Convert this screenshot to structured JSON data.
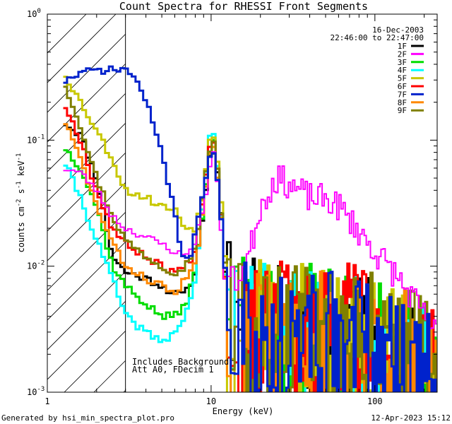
{
  "chart_data": {
    "type": "line",
    "title": "Count Spectra for RHESSI Front Segments",
    "xlabel": "Energy (keV)",
    "ylabel": "counts cm^-2 s^-1 keV^-1",
    "ylabel_parts": {
      "main": "counts cm",
      "sup1": "-2",
      "mid": " s",
      "sup2": "-1",
      "unit": " keV",
      "sup3": "-1"
    },
    "x_scale": "log",
    "y_scale": "log",
    "xlim": [
      1,
      240
    ],
    "ylim": [
      0.001,
      1
    ],
    "x_tick_labels": [
      "1",
      "10",
      "100"
    ],
    "x_tick_values": [
      1,
      10,
      100
    ],
    "y_tick_labels": [
      {
        "base": "10",
        "exp": "0",
        "value": 1
      },
      {
        "base": "10",
        "exp": "-1",
        "value": 0.1
      },
      {
        "base": "10",
        "exp": "-2",
        "value": 0.01
      },
      {
        "base": "10",
        "exp": "-3",
        "value": 0.001
      }
    ],
    "date": "16-Dec-2003",
    "time_range": "22:46:00 to 22:47:00",
    "background_note": "Includes Background",
    "attenuator_note": "Att A0, FDecim 1",
    "shaded_region_keV": [
      1,
      3
    ],
    "footer_left": "Generated by hsi_min_spectra_plot.pro",
    "footer_right": "12-Apr-2023 15:12",
    "series": [
      {
        "name": "1F",
        "color": "#000000",
        "seed": 11,
        "lo": [
          [
            1.25,
            0.14
          ],
          [
            1.6,
            0.11
          ],
          [
            2.0,
            0.05
          ],
          [
            2.5,
            0.012
          ],
          [
            3.0,
            0.009
          ],
          [
            4,
            0.008
          ],
          [
            5,
            0.007
          ],
          [
            6,
            0.006
          ],
          [
            7,
            0.006
          ],
          [
            8,
            0.009
          ],
          [
            9,
            0.03
          ],
          [
            10,
            0.085
          ],
          [
            10.6,
            0.08
          ],
          [
            11.3,
            0.04
          ],
          [
            12,
            0.01
          ],
          [
            13,
            0.0045
          ],
          [
            20,
            0.003
          ],
          [
            40,
            0.003
          ],
          [
            80,
            0.0025
          ],
          [
            150,
            0.0018
          ],
          [
            230,
            0.0013
          ]
        ]
      },
      {
        "name": "2F",
        "color": "#ff00ff",
        "seed": 23,
        "lo": [
          [
            1.25,
            0.06
          ],
          [
            1.6,
            0.055
          ],
          [
            2.0,
            0.04
          ],
          [
            2.5,
            0.025
          ],
          [
            3.0,
            0.02
          ],
          [
            4,
            0.017
          ],
          [
            5,
            0.015
          ],
          [
            6,
            0.013
          ],
          [
            7,
            0.012
          ],
          [
            8,
            0.016
          ],
          [
            9,
            0.03
          ],
          [
            10,
            0.07
          ],
          [
            10.6,
            0.08
          ],
          [
            11.3,
            0.03
          ],
          [
            12,
            0.008
          ],
          [
            14,
            0.0075
          ],
          [
            17,
            0.012
          ],
          [
            20,
            0.03
          ],
          [
            25,
            0.05
          ],
          [
            30,
            0.045
          ],
          [
            40,
            0.035
          ],
          [
            50,
            0.034
          ],
          [
            60,
            0.03
          ],
          [
            80,
            0.019
          ],
          [
            100,
            0.013
          ],
          [
            130,
            0.009
          ],
          [
            180,
            0.005
          ],
          [
            230,
            0.003
          ]
        ]
      },
      {
        "name": "3F",
        "color": "#00dd00",
        "seed": 37,
        "lo": [
          [
            1.25,
            0.09
          ],
          [
            1.6,
            0.06
          ],
          [
            2.0,
            0.03
          ],
          [
            2.5,
            0.01
          ],
          [
            3.0,
            0.007
          ],
          [
            4,
            0.005
          ],
          [
            5,
            0.004
          ],
          [
            6,
            0.004
          ],
          [
            7,
            0.005
          ],
          [
            8,
            0.009
          ],
          [
            9,
            0.03
          ],
          [
            10,
            0.1
          ],
          [
            10.6,
            0.09
          ],
          [
            11.3,
            0.04
          ],
          [
            12,
            0.012
          ],
          [
            13,
            0.004
          ],
          [
            20,
            0.003
          ],
          [
            40,
            0.003
          ],
          [
            80,
            0.0026
          ],
          [
            150,
            0.002
          ],
          [
            230,
            0.0014
          ]
        ]
      },
      {
        "name": "4F",
        "color": "#00ffff",
        "seed": 41,
        "lo": [
          [
            1.25,
            0.07
          ],
          [
            1.6,
            0.035
          ],
          [
            2.0,
            0.016
          ],
          [
            2.5,
            0.008
          ],
          [
            3.0,
            0.004
          ],
          [
            4,
            0.003
          ],
          [
            5,
            0.0025
          ],
          [
            6,
            0.003
          ],
          [
            7,
            0.004
          ],
          [
            8,
            0.008
          ],
          [
            9,
            0.035
          ],
          [
            10,
            0.13
          ],
          [
            10.6,
            0.1
          ],
          [
            11.3,
            0.04
          ],
          [
            12,
            0.01
          ],
          [
            13,
            0.004
          ],
          [
            20,
            0.003
          ],
          [
            40,
            0.0028
          ],
          [
            80,
            0.0024
          ],
          [
            150,
            0.0018
          ],
          [
            230,
            0.0012
          ]
        ]
      },
      {
        "name": "5F",
        "color": "#c8c800",
        "seed": 53,
        "lo": [
          [
            1.25,
            0.35
          ],
          [
            1.6,
            0.2
          ],
          [
            2.0,
            0.12
          ],
          [
            2.5,
            0.07
          ],
          [
            3.0,
            0.04
          ],
          [
            4,
            0.035
          ],
          [
            5,
            0.03
          ],
          [
            6,
            0.028
          ],
          [
            7,
            0.02
          ],
          [
            8,
            0.02
          ],
          [
            9,
            0.04
          ],
          [
            10,
            0.12
          ],
          [
            10.6,
            0.1
          ],
          [
            11.3,
            0.05
          ],
          [
            12,
            0.015
          ],
          [
            13,
            0.005
          ],
          [
            20,
            0.0035
          ],
          [
            40,
            0.0032
          ],
          [
            80,
            0.0028
          ],
          [
            150,
            0.002
          ],
          [
            230,
            0.0015
          ]
        ]
      },
      {
        "name": "6F",
        "color": "#ff0000",
        "seed": 67,
        "lo": [
          [
            1.25,
            0.2
          ],
          [
            1.6,
            0.1
          ],
          [
            2.0,
            0.04
          ],
          [
            2.5,
            0.02
          ],
          [
            3.0,
            0.015
          ],
          [
            4,
            0.012
          ],
          [
            5,
            0.01
          ],
          [
            6,
            0.009
          ],
          [
            7,
            0.01
          ],
          [
            8,
            0.013
          ],
          [
            9,
            0.04
          ],
          [
            10,
            0.11
          ],
          [
            10.6,
            0.09
          ],
          [
            11.3,
            0.04
          ],
          [
            12,
            0.01
          ],
          [
            13,
            0.0045
          ],
          [
            20,
            0.0035
          ],
          [
            40,
            0.0033
          ],
          [
            80,
            0.003
          ],
          [
            150,
            0.002
          ],
          [
            230,
            0.0014
          ]
        ]
      },
      {
        "name": "7F",
        "color": "#0022cc",
        "seed": 71,
        "lo": [
          [
            1.25,
            0.29
          ],
          [
            1.6,
            0.34
          ],
          [
            2.0,
            0.36
          ],
          [
            2.5,
            0.36
          ],
          [
            3.0,
            0.37
          ],
          [
            3.5,
            0.3
          ],
          [
            4,
            0.2
          ],
          [
            4.5,
            0.13
          ],
          [
            5,
            0.08
          ],
          [
            5.5,
            0.045
          ],
          [
            6,
            0.025
          ],
          [
            6.5,
            0.015
          ],
          [
            7,
            0.011
          ],
          [
            7.5,
            0.012
          ],
          [
            8,
            0.02
          ],
          [
            9,
            0.04
          ],
          [
            10,
            0.08
          ],
          [
            10.6,
            0.07
          ],
          [
            11.3,
            0.035
          ],
          [
            12,
            0.012
          ],
          [
            13,
            0.004
          ],
          [
            20,
            0.003
          ],
          [
            40,
            0.0028
          ],
          [
            80,
            0.0025
          ],
          [
            150,
            0.0018
          ],
          [
            230,
            0.0013
          ]
        ]
      },
      {
        "name": "8F",
        "color": "#ff8800",
        "seed": 83,
        "lo": [
          [
            1.25,
            0.15
          ],
          [
            1.6,
            0.07
          ],
          [
            2.0,
            0.03
          ],
          [
            2.5,
            0.015
          ],
          [
            3.0,
            0.01
          ],
          [
            4,
            0.008
          ],
          [
            5,
            0.007
          ],
          [
            6,
            0.006
          ],
          [
            7,
            0.008
          ],
          [
            8,
            0.01
          ],
          [
            9,
            0.03
          ],
          [
            10,
            0.095
          ],
          [
            10.6,
            0.08
          ],
          [
            11.3,
            0.035
          ],
          [
            12,
            0.01
          ],
          [
            13,
            0.004
          ],
          [
            20,
            0.003
          ],
          [
            40,
            0.003
          ],
          [
            80,
            0.0026
          ],
          [
            150,
            0.0019
          ],
          [
            230,
            0.0013
          ]
        ]
      },
      {
        "name": "9F",
        "color": "#808000",
        "seed": 97,
        "lo": [
          [
            1.25,
            0.3
          ],
          [
            1.6,
            0.13
          ],
          [
            2.0,
            0.05
          ],
          [
            2.5,
            0.025
          ],
          [
            3.0,
            0.016
          ],
          [
            4,
            0.012
          ],
          [
            5,
            0.01
          ],
          [
            6,
            0.009
          ],
          [
            7,
            0.01
          ],
          [
            8,
            0.014
          ],
          [
            9,
            0.04
          ],
          [
            10,
            0.1
          ],
          [
            10.6,
            0.09
          ],
          [
            11.3,
            0.04
          ],
          [
            12,
            0.012
          ],
          [
            13,
            0.0045
          ],
          [
            20,
            0.0035
          ],
          [
            40,
            0.0032
          ],
          [
            80,
            0.0028
          ],
          [
            150,
            0.002
          ],
          [
            230,
            0.0014
          ]
        ]
      }
    ]
  }
}
